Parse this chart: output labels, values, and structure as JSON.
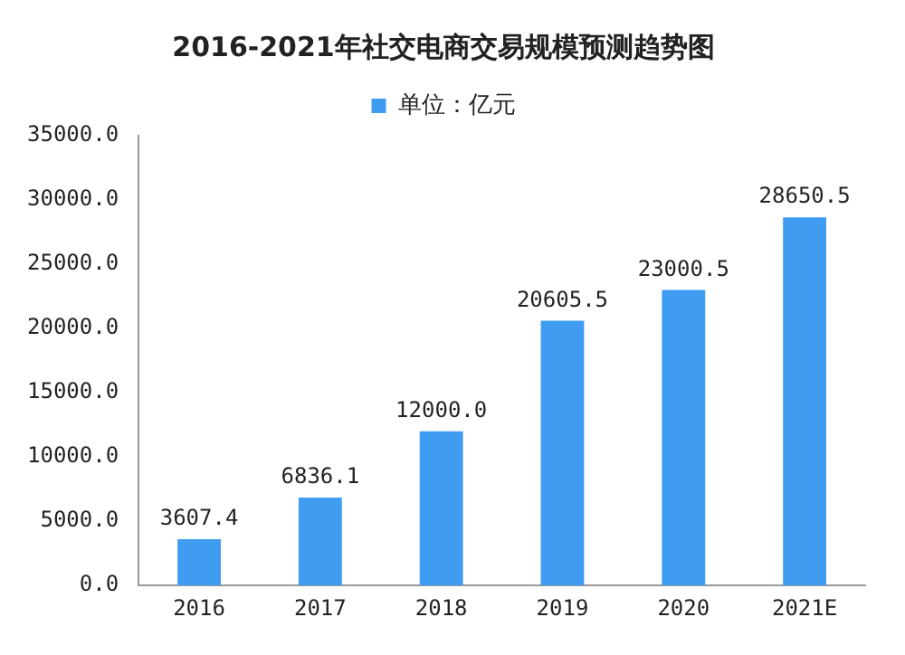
{
  "chart_data": {
    "type": "bar",
    "title": "2016-2021年社交电商交易规模预测趋势图",
    "categories": [
      "2016",
      "2017",
      "2018",
      "2019",
      "2020",
      "2021E"
    ],
    "series": [
      {
        "name": "单位：亿元",
        "color": "#3f9cf0",
        "values": [
          3607.4,
          6836.1,
          12000.0,
          20605.5,
          23000.5,
          28650.5
        ],
        "value_labels": [
          "3607.4",
          "6836.1",
          "12000.0",
          "20605.5",
          "23000.5",
          "28650.5"
        ]
      }
    ],
    "ylim": [
      0,
      35000
    ],
    "yticks": [
      {
        "value": 0,
        "label": "0.0"
      },
      {
        "value": 5000,
        "label": "5000.0"
      },
      {
        "value": 10000,
        "label": "10000.0"
      },
      {
        "value": 15000,
        "label": "15000.0"
      },
      {
        "value": 20000,
        "label": "20000.0"
      },
      {
        "value": 25000,
        "label": "25000.0"
      },
      {
        "value": 30000,
        "label": "30000.0"
      },
      {
        "value": 35000,
        "label": "35000.0"
      }
    ],
    "grid": false,
    "legend": "top"
  }
}
